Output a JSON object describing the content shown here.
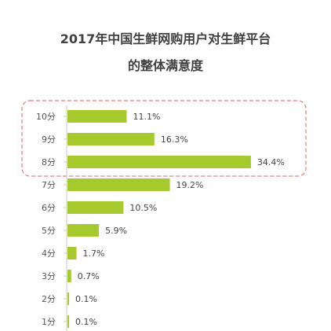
{
  "chart_data": {
    "type": "bar",
    "orientation": "horizontal",
    "title_line1": "2017年中国生鲜网购用户对生鲜平台",
    "title_line2": "的整体满意度",
    "categories": [
      "10分",
      "9分",
      "8分",
      "7分",
      "6分",
      "5分",
      "4分",
      "3分",
      "2分",
      "1分"
    ],
    "values": [
      11.1,
      16.3,
      34.4,
      19.2,
      10.5,
      5.9,
      1.7,
      0.7,
      0.1,
      0.1
    ],
    "value_labels": [
      "11.1%",
      "16.3%",
      "34.4%",
      "19.2%",
      "10.5%",
      "5.9%",
      "1.7%",
      "0.7%",
      "0.1%",
      "0.1%"
    ],
    "highlight_categories": [
      "10分",
      "9分",
      "8分"
    ],
    "colors": {
      "bar": "#a6c92e",
      "highlight_border": "#e57a7a",
      "axis": "#c8c8c8",
      "title": "#404040"
    },
    "grid": false,
    "legend": "none"
  }
}
